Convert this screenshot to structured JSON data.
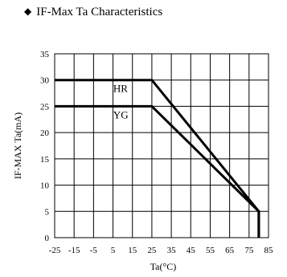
{
  "heading": {
    "marker": "◆",
    "text": "IF-Max Ta Characteristics"
  },
  "chart_data": {
    "type": "line",
    "title": "IF-Max Ta Characteristics",
    "xlabel": "Ta(°C)",
    "ylabel": "IF-MAX Ta(mA)",
    "xlim": [
      -25,
      85
    ],
    "ylim": [
      0,
      35
    ],
    "x_ticks": [
      -25,
      -15,
      -5,
      5,
      15,
      25,
      35,
      45,
      55,
      65,
      75,
      85
    ],
    "y_ticks": [
      0,
      5,
      10,
      15,
      20,
      25,
      30,
      35
    ],
    "grid": true,
    "legend": "none",
    "series": [
      {
        "name": "HR",
        "x": [
          -25,
          25,
          80,
          80
        ],
        "y": [
          30,
          30,
          5,
          0
        ]
      },
      {
        "name": "YG",
        "x": [
          -25,
          25,
          80,
          80
        ],
        "y": [
          25,
          25,
          5,
          0
        ]
      }
    ],
    "colors": {
      "line": "#000000",
      "grid": "#000000"
    }
  }
}
